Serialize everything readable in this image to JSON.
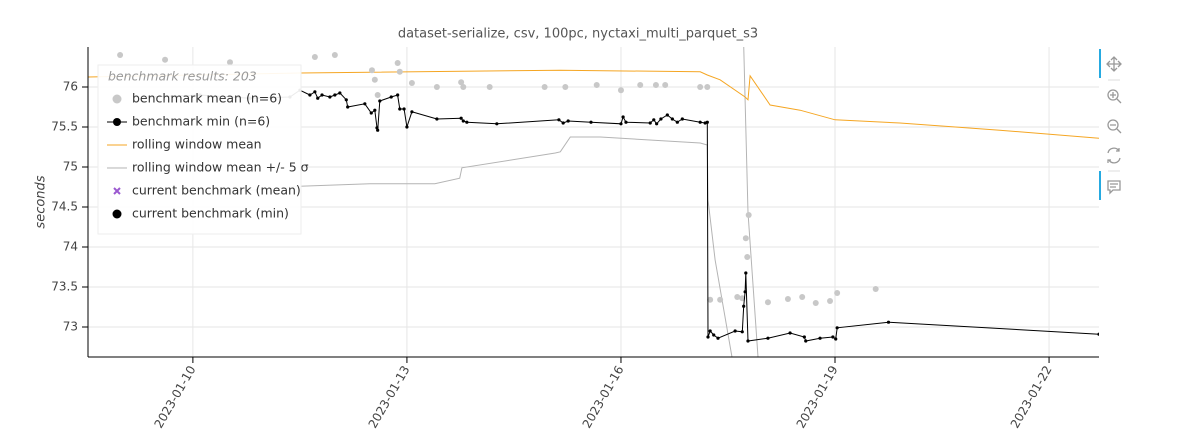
{
  "chart_data": {
    "type": "timeseries",
    "title": "dataset-serialize, csv, 100pc, nyctaxi_multi_parquet_s3",
    "y_label": "seconds",
    "xlim": [
      8.53,
      22.7
    ],
    "ylim": [
      72.625,
      76.5
    ],
    "xticks": [
      {
        "value": 10,
        "label": "2023-01-10"
      },
      {
        "value": 13,
        "label": "2023-01-13"
      },
      {
        "value": 16,
        "label": "2023-01-16"
      },
      {
        "value": 19,
        "label": "2023-01-19"
      },
      {
        "value": 22,
        "label": "2023-01-22"
      }
    ],
    "yticks": [
      73,
      73.5,
      74,
      74.5,
      75,
      75.5,
      76
    ],
    "grid": true,
    "legend": {
      "title": "benchmark results: 203",
      "position": "top-left"
    },
    "series": [
      {
        "name": "benchmark mean (n=6)",
        "color": "#c8c8c8",
        "mode": "markers",
        "x": [
          8.98,
          9.61,
          10.52,
          11.71,
          11.99,
          12.51,
          12.55,
          12.59,
          12.87,
          12.9,
          13.07,
          13.42,
          13.76,
          13.79,
          14.16,
          14.93,
          15.22,
          15.66,
          16.0,
          16.27,
          16.49,
          16.62,
          17.11,
          17.21,
          17.25,
          17.39,
          17.63,
          17.7,
          17.75,
          17.77,
          17.79,
          18.06,
          18.34,
          18.54,
          18.73,
          18.93,
          19.03,
          19.57
        ],
        "values": [
          76.4,
          76.34,
          76.31,
          76.375,
          76.4,
          76.21,
          76.09,
          75.9,
          76.3,
          76.19,
          76.05,
          76.0,
          76.06,
          76.0,
          76.0,
          76.0,
          76.0,
          76.025,
          75.96,
          76.025,
          76.025,
          76.025,
          76.0,
          76.0,
          73.34,
          73.34,
          73.375,
          73.36,
          74.11,
          73.875,
          74.4,
          73.31,
          73.35,
          73.375,
          73.3,
          73.325,
          73.425,
          73.475
        ]
      },
      {
        "name": "benchmark min (n=6)",
        "color": "#000000",
        "mode": "lines+markers",
        "x": [
          9.4,
          10.1,
          10.8,
          11.36,
          11.5,
          11.64,
          11.71,
          11.75,
          11.81,
          11.92,
          11.99,
          12.06,
          12.15,
          12.17,
          12.41,
          12.5,
          12.55,
          12.58,
          12.59,
          12.62,
          12.78,
          12.87,
          12.9,
          12.96,
          13.0,
          13.07,
          13.42,
          13.76,
          13.79,
          13.84,
          14.26,
          15.13,
          15.19,
          15.26,
          15.58,
          16.0,
          16.03,
          16.07,
          16.41,
          16.46,
          16.5,
          16.56,
          16.65,
          16.72,
          16.79,
          16.86,
          17.11,
          17.18,
          17.21,
          17.22,
          17.25,
          17.3,
          17.36,
          17.6,
          17.7,
          17.72,
          17.74,
          17.75,
          17.78,
          18.06,
          18.37,
          18.57,
          18.59,
          18.79,
          18.97,
          19.01,
          19.03,
          19.75,
          22.7
        ],
        "values": [
          75.875,
          75.9,
          75.86,
          75.875,
          75.96,
          75.9,
          75.94,
          75.86,
          75.9,
          75.875,
          75.9,
          75.925,
          75.84,
          75.75,
          75.79,
          75.675,
          75.71,
          75.49,
          75.46,
          75.825,
          75.875,
          75.9,
          75.725,
          75.725,
          75.5,
          75.69,
          75.6,
          75.61,
          75.575,
          75.56,
          75.54,
          75.59,
          75.55,
          75.575,
          75.56,
          75.54,
          75.625,
          75.56,
          75.55,
          75.59,
          75.54,
          75.6,
          75.65,
          75.6,
          75.56,
          75.6,
          75.56,
          75.55,
          75.56,
          72.875,
          72.95,
          72.9,
          72.86,
          72.95,
          72.94,
          73.26,
          73.44,
          73.675,
          72.825,
          72.86,
          72.925,
          72.875,
          72.825,
          72.86,
          72.875,
          72.85,
          72.99,
          73.06,
          72.91
        ]
      },
      {
        "name": "rolling window mean",
        "color": "#f5a623",
        "mode": "lines",
        "x": [
          8.53,
          11.5,
          15.15,
          17.11,
          17.21,
          17.39,
          17.74,
          17.78,
          17.81,
          18.09,
          18.51,
          19.0,
          19.91,
          21.31,
          22.7
        ],
        "values": [
          76.125,
          76.175,
          76.21,
          76.19,
          76.15,
          76.09,
          75.875,
          75.84,
          76.14,
          75.775,
          75.71,
          75.59,
          75.55,
          75.46,
          75.36
        ]
      },
      {
        "name": "rolling window mean +/- 5 σ",
        "color": "#b4b4b4",
        "mode": "band",
        "x": [
          10.8,
          11.5,
          12.48,
          13.39,
          13.74,
          13.77,
          15.08,
          15.15,
          15.29,
          15.71,
          17.11,
          17.21,
          17.22,
          17.32,
          17.6
        ],
        "values": [
          74.71,
          74.76,
          74.79,
          74.79,
          74.86,
          74.99,
          75.175,
          75.19,
          75.375,
          75.375,
          75.3,
          75.275,
          74.59,
          73.84,
          72.4
        ],
        "upper_x": [
          17.7,
          17.78,
          17.93
        ],
        "upper_values": [
          77.2,
          74.43,
          72.5
        ]
      },
      {
        "name": "current benchmark (mean)",
        "color": "#9b59d0",
        "mode": "x",
        "x": [],
        "values": []
      },
      {
        "name": "current benchmark (min)",
        "color": "#000000",
        "mode": "dot",
        "x": [],
        "values": []
      }
    ]
  }
}
